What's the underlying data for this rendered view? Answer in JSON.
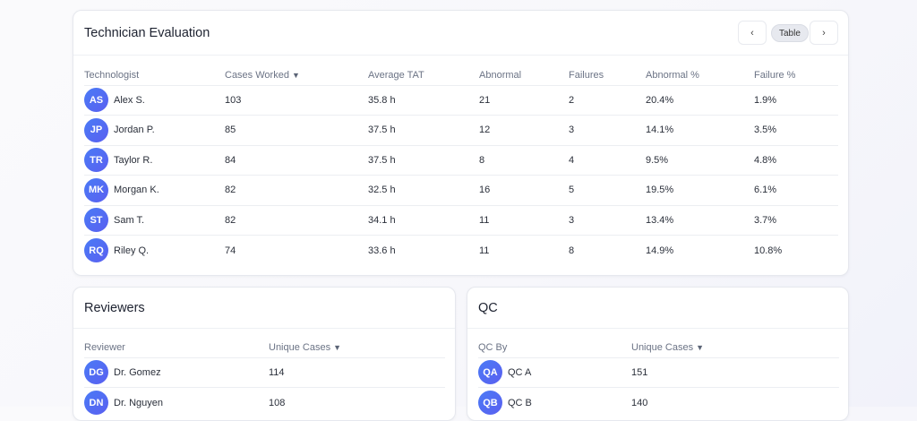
{
  "tech": {
    "title": "Technician Evaluation",
    "view_label": "Table",
    "prev": "‹",
    "next": "›",
    "headers": [
      "Technologist",
      "Cases Worked",
      "Average TAT",
      "Abnormal",
      "Failures",
      "Abnormal %",
      "Failure %"
    ],
    "sort_icon": "▼",
    "rows": [
      {
        "initials": "AS",
        "name": "Alex S.",
        "cases": "103",
        "tat": "35.8 h",
        "abnormal": "21",
        "failures": "2",
        "abn_pct": "20.4%",
        "fail_pct": "1.9%"
      },
      {
        "initials": "JP",
        "name": "Jordan P.",
        "cases": "85",
        "tat": "37.5 h",
        "abnormal": "12",
        "failures": "3",
        "abn_pct": "14.1%",
        "fail_pct": "3.5%"
      },
      {
        "initials": "TR",
        "name": "Taylor R.",
        "cases": "84",
        "tat": "37.5 h",
        "abnormal": "8",
        "failures": "4",
        "abn_pct": "9.5%",
        "fail_pct": "4.8%"
      },
      {
        "initials": "MK",
        "name": "Morgan K.",
        "cases": "82",
        "tat": "32.5 h",
        "abnormal": "16",
        "failures": "5",
        "abn_pct": "19.5%",
        "fail_pct": "6.1%"
      },
      {
        "initials": "ST",
        "name": "Sam T.",
        "cases": "82",
        "tat": "34.1 h",
        "abnormal": "11",
        "failures": "3",
        "abn_pct": "13.4%",
        "fail_pct": "3.7%"
      },
      {
        "initials": "RQ",
        "name": "Riley Q.",
        "cases": "74",
        "tat": "33.6 h",
        "abnormal": "11",
        "failures": "8",
        "abn_pct": "14.9%",
        "fail_pct": "10.8%"
      }
    ]
  },
  "reviewers": {
    "title": "Reviewers",
    "headers": [
      "Reviewer",
      "Unique Cases"
    ],
    "rows": [
      {
        "initials": "DG",
        "name": "Dr. Gomez",
        "cases": "114"
      },
      {
        "initials": "DN",
        "name": "Dr. Nguyen",
        "cases": "108"
      }
    ]
  },
  "qc": {
    "title": "QC",
    "headers": [
      "QC By",
      "Unique Cases"
    ],
    "rows": [
      {
        "initials": "QA",
        "name": "QC A",
        "cases": "151"
      },
      {
        "initials": "QB",
        "name": "QC B",
        "cases": "140"
      }
    ]
  }
}
